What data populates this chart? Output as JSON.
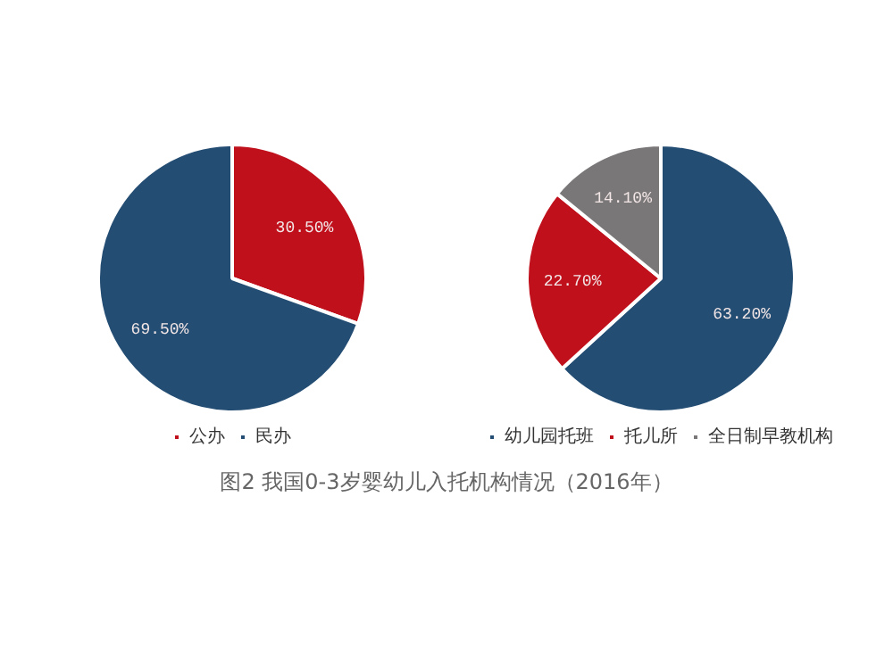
{
  "chart_data": [
    {
      "type": "pie",
      "categories": [
        "公办",
        "民办"
      ],
      "values": [
        30.5,
        69.5
      ],
      "colors": [
        "#c0101c",
        "#244d73"
      ],
      "value_labels": [
        "30.50%",
        "69.50%"
      ],
      "legend": "bottom"
    },
    {
      "type": "pie",
      "categories": [
        "幼儿园托班",
        "托儿所",
        "全日制早教机构"
      ],
      "values": [
        63.2,
        22.7,
        14.1
      ],
      "colors": [
        "#244d73",
        "#c0101c",
        "#7a7778"
      ],
      "value_labels": [
        "63.20%",
        "22.70%",
        "14.10%"
      ],
      "legend": "bottom",
      "annotations": [
        "图2  我国0-3岁婴幼儿入托机构情况（2016年）"
      ]
    }
  ]
}
